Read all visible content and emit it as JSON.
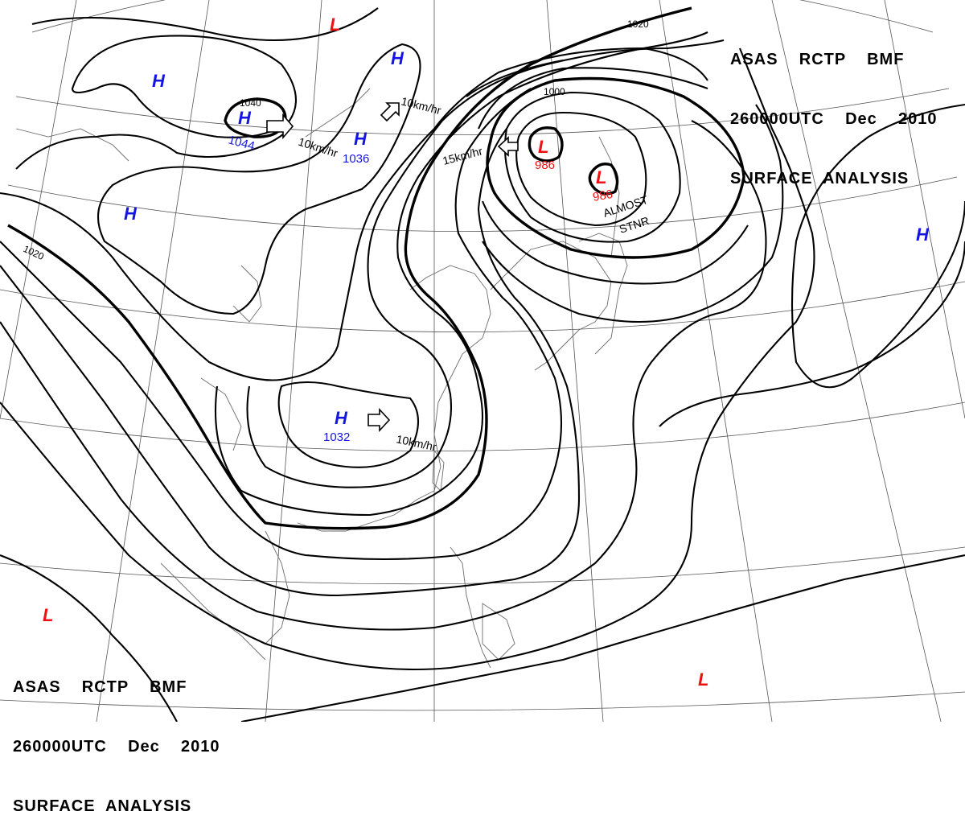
{
  "header_top": {
    "line1": "ASAS    RCTP    BMF",
    "line2": "260000UTC    Dec    2010",
    "line3": "SURFACE  ANALYSIS"
  },
  "header_bottom": {
    "line1": "ASAS    RCTP    BMF",
    "line2": "260000UTC    Dec    2010",
    "line3": "SURFACE  ANALYSIS"
  },
  "colors": {
    "high": "#1515e0",
    "low": "#ee1111",
    "isobar": "#000000",
    "grid": "#555555"
  },
  "pressure_centers": [
    {
      "type": "H",
      "symbol": "H",
      "value": "1044"
    },
    {
      "type": "H",
      "symbol": "H",
      "value": "1036"
    },
    {
      "type": "H",
      "symbol": "H",
      "value": "1032"
    },
    {
      "type": "H",
      "symbol": "H",
      "value": ""
    },
    {
      "type": "H",
      "symbol": "H",
      "value": ""
    },
    {
      "type": "H",
      "symbol": "H",
      "value": ""
    },
    {
      "type": "H",
      "symbol": "H",
      "value": ""
    },
    {
      "type": "L",
      "symbol": "L",
      "value": "986"
    },
    {
      "type": "L",
      "symbol": "L",
      "value": "986"
    },
    {
      "type": "L",
      "symbol": "L",
      "value": ""
    },
    {
      "type": "L",
      "symbol": "L",
      "value": ""
    },
    {
      "type": "L",
      "symbol": "L",
      "value": ""
    }
  ],
  "isobar_labels": [
    "1040",
    "1020",
    "1000",
    "1020"
  ],
  "movement_labels": [
    "10km/hr",
    "10km/hr",
    "15km/hr",
    "10km/hr"
  ],
  "annotations": {
    "almost": "ALMOST",
    "stnr": "STNR"
  }
}
